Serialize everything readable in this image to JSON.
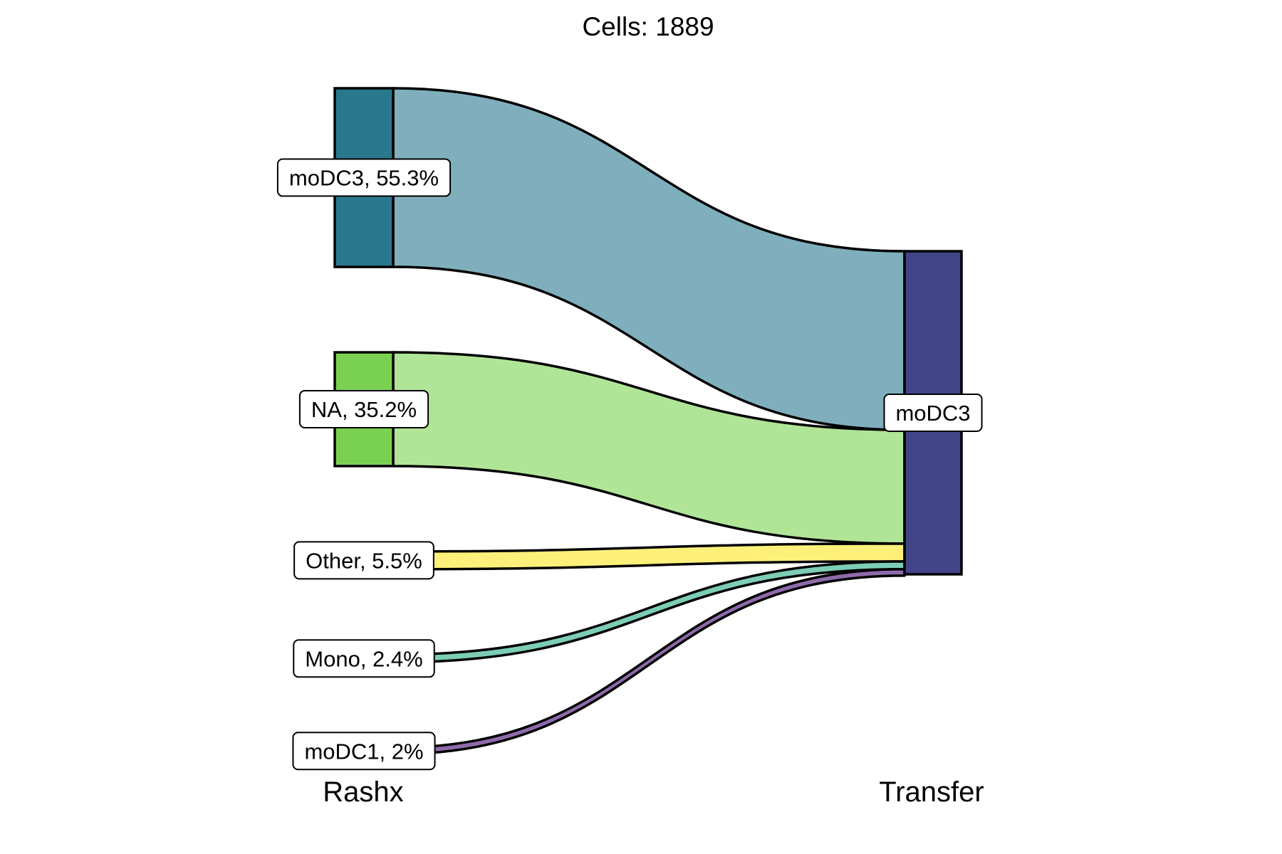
{
  "chart_data": {
    "type": "sankey",
    "title": "Cells:  1889",
    "axes": [
      "Rashx",
      "Transfer"
    ],
    "source_nodes": [
      {
        "name": "moDC3",
        "label": "moDC3, 55.3%",
        "percent": 55.3,
        "color": "#2A788E",
        "flow_color": "#7FAFBC"
      },
      {
        "name": "NA",
        "label": "NA, 35.2%",
        "percent": 35.2,
        "color": "#7AD151",
        "flow_color": "#B0E597"
      },
      {
        "name": "Other",
        "label": "Other, 5.5%",
        "percent": 5.5,
        "color": "#FDE725",
        "flow_color": "#FDF07A"
      },
      {
        "name": "Mono",
        "label": "Mono, 2.4%",
        "percent": 2.4,
        "color": "#22A884",
        "flow_color": "#7CCDB5"
      },
      {
        "name": "moDC1",
        "label": "moDC1, 2%",
        "percent": 2.0,
        "color": "#414487",
        "flow_color": "#8E6AAB"
      }
    ],
    "target_nodes": [
      {
        "name": "moDC3",
        "label": "moDC3",
        "percent": 100,
        "color": "#414487"
      }
    ],
    "flows": [
      {
        "from": "moDC3",
        "to": "moDC3",
        "percent": 55.3
      },
      {
        "from": "NA",
        "to": "moDC3",
        "percent": 35.2
      },
      {
        "from": "Other",
        "to": "moDC3",
        "percent": 5.5
      },
      {
        "from": "Mono",
        "to": "moDC3",
        "percent": 2.4
      },
      {
        "from": "moDC1",
        "to": "moDC3",
        "percent": 2.0
      }
    ]
  }
}
